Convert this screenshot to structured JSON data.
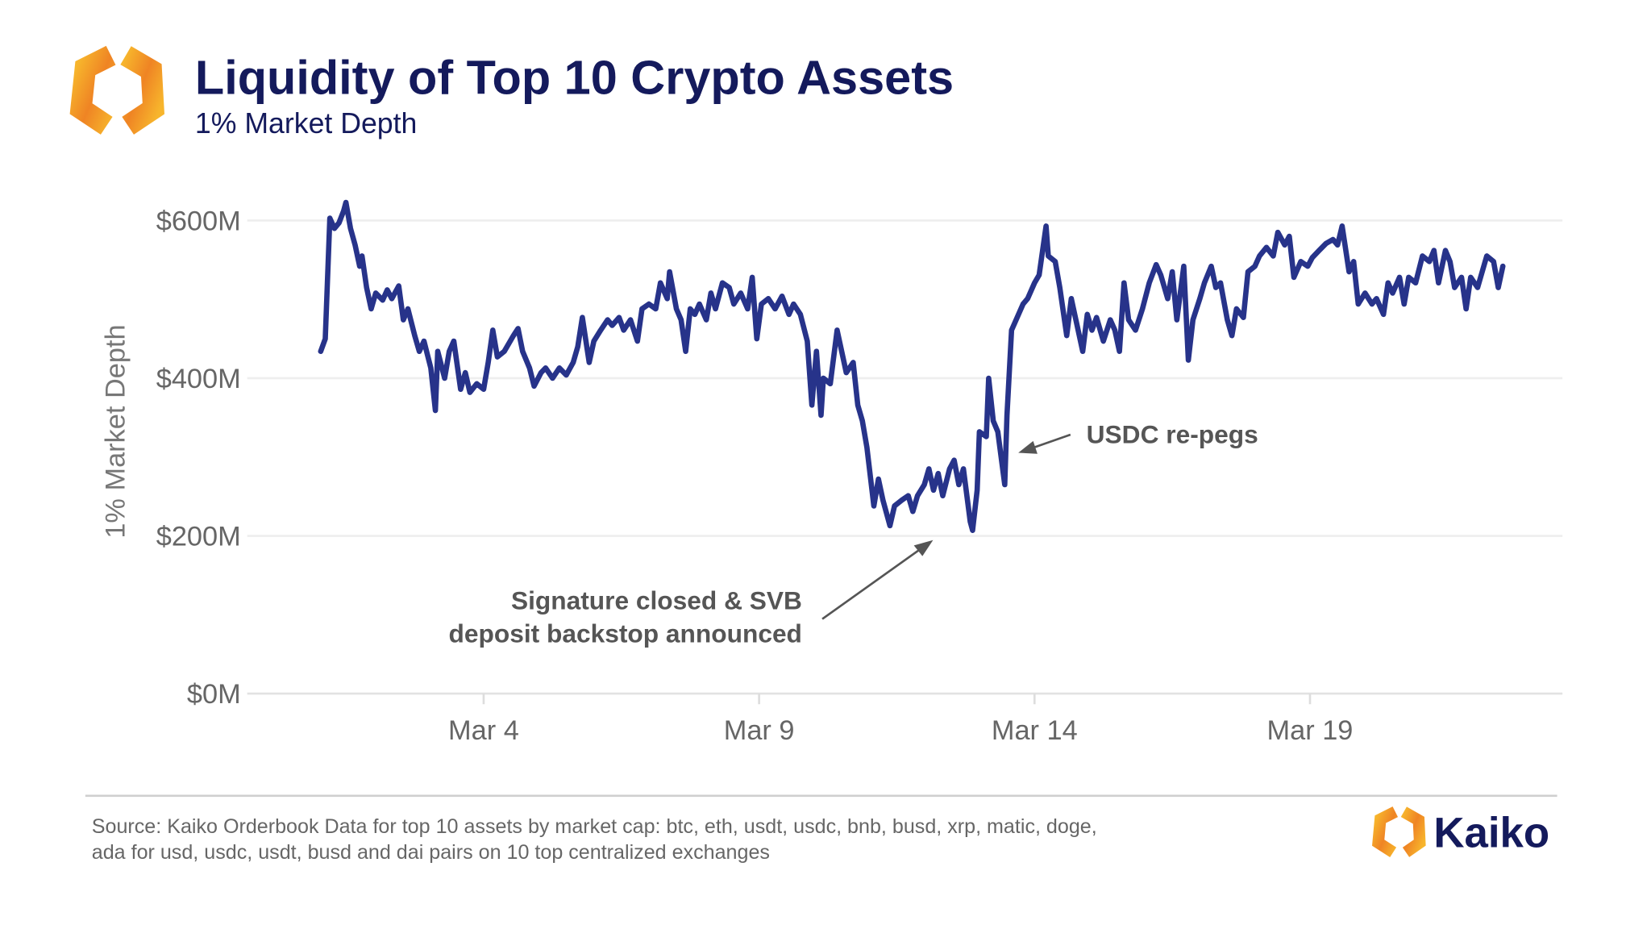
{
  "header": {
    "title": "Liquidity of Top 10 Crypto Assets",
    "subtitle": "1% Market Depth"
  },
  "footer": {
    "source_line1": "Source: Kaiko Orderbook Data for top 10 assets by market cap: btc, eth, usdt, usdc, bnb, busd, xrp, matic, doge,",
    "source_line2": "ada for usd, usdc, usdt, busd and dai pairs on 10 top centralized exchanges",
    "brand": "Kaiko"
  },
  "colors": {
    "title": "#141a5c",
    "line": "#27338a",
    "annotation": "#555555",
    "brand_orange": "#f5a623",
    "brand_orange_dark": "#ee7d22",
    "grid": "#ececec"
  },
  "chart_data": {
    "type": "line",
    "title": "Liquidity of Top 10 Crypto Assets",
    "subtitle": "1% Market Depth",
    "xlabel": "",
    "ylabel": "1% Market Depth",
    "ylim": [
      0,
      650
    ],
    "xlim": [
      "Feb 27 17:00",
      "Mar 23 14:00"
    ],
    "grid": "horizontal",
    "y_ticks": [
      {
        "value": 0,
        "label": "$0M"
      },
      {
        "value": 200,
        "label": "$200M"
      },
      {
        "value": 400,
        "label": "$400M"
      },
      {
        "value": 600,
        "label": "$600M"
      }
    ],
    "x_ticks": [
      {
        "value": "Mar 4 00:00",
        "label": "Mar 4"
      },
      {
        "value": "Mar 9 00:00",
        "label": "Mar 9"
      },
      {
        "value": "Mar 14 00:00",
        "label": "Mar 14"
      },
      {
        "value": "Mar 19 00:00",
        "label": "Mar 19"
      }
    ],
    "annotations": [
      {
        "text_lines": [
          "Signature closed & SVB",
          "deposit backstop announced"
        ],
        "points_to": [
          "Mar 11 14:00",
          250
        ]
      },
      {
        "text_lines": [
          "USDC re-pegs"
        ],
        "points_to": [
          "Mar 13 14:00",
          310
        ]
      }
    ],
    "unit": "USD millions",
    "points": [
      [
        "Mar 1 01:00",
        434
      ],
      [
        "Mar 1 03:00",
        450
      ],
      [
        "Mar 1 05:00",
        603
      ],
      [
        "Mar 1 07:00",
        590
      ],
      [
        "Mar 1 09:00",
        597
      ],
      [
        "Mar 1 11:00",
        612
      ],
      [
        "Mar 1 12:00",
        623
      ],
      [
        "Mar 1 14:00",
        590
      ],
      [
        "Mar 1 16:00",
        569
      ],
      [
        "Mar 1 18:00",
        542
      ],
      [
        "Mar 1 19:00",
        555
      ],
      [
        "Mar 1 21:00",
        515
      ],
      [
        "Mar 1 23:00",
        488
      ],
      [
        "Mar 2 01:00",
        508
      ],
      [
        "Mar 2 04:00",
        499
      ],
      [
        "Mar 2 06:00",
        512
      ],
      [
        "Mar 2 08:00",
        501
      ],
      [
        "Mar 2 11:00",
        517
      ],
      [
        "Mar 2 13:00",
        474
      ],
      [
        "Mar 2 15:00",
        488
      ],
      [
        "Mar 2 18:00",
        454
      ],
      [
        "Mar 2 20:00",
        434
      ],
      [
        "Mar 2 22:00",
        447
      ],
      [
        "Mar 3 01:00",
        413
      ],
      [
        "Mar 3 03:00",
        359
      ],
      [
        "Mar 3 04:00",
        434
      ],
      [
        "Mar 3 07:00",
        400
      ],
      [
        "Mar 3 09:00",
        434
      ],
      [
        "Mar 3 11:00",
        447
      ],
      [
        "Mar 3 14:00",
        386
      ],
      [
        "Mar 3 16:00",
        407
      ],
      [
        "Mar 3 18:00",
        382
      ],
      [
        "Mar 3 21:00",
        393
      ],
      [
        "Mar 4 00:00",
        386
      ],
      [
        "Mar 4 02:00",
        420
      ],
      [
        "Mar 4 04:00",
        461
      ],
      [
        "Mar 4 06:00",
        427
      ],
      [
        "Mar 4 09:00",
        434
      ],
      [
        "Mar 4 13:00",
        454
      ],
      [
        "Mar 4 15:00",
        463
      ],
      [
        "Mar 4 17:00",
        434
      ],
      [
        "Mar 4 20:00",
        413
      ],
      [
        "Mar 4 22:00",
        390
      ],
      [
        "Mar 5 01:00",
        407
      ],
      [
        "Mar 5 03:00",
        413
      ],
      [
        "Mar 5 06:00",
        400
      ],
      [
        "Mar 5 09:00",
        413
      ],
      [
        "Mar 5 12:00",
        404
      ],
      [
        "Mar 5 15:00",
        420
      ],
      [
        "Mar 5 17:00",
        440
      ],
      [
        "Mar 5 19:00",
        477
      ],
      [
        "Mar 5 22:00",
        420
      ],
      [
        "Mar 6 00:00",
        447
      ],
      [
        "Mar 6 03:00",
        461
      ],
      [
        "Mar 6 06:00",
        474
      ],
      [
        "Mar 6 08:00",
        467
      ],
      [
        "Mar 6 11:00",
        477
      ],
      [
        "Mar 6 13:00",
        461
      ],
      [
        "Mar 6 16:00",
        474
      ],
      [
        "Mar 6 19:00",
        447
      ],
      [
        "Mar 6 21:00",
        488
      ],
      [
        "Mar 7 00:00",
        494
      ],
      [
        "Mar 7 03:00",
        488
      ],
      [
        "Mar 7 05:00",
        521
      ],
      [
        "Mar 7 08:00",
        501
      ],
      [
        "Mar 7 09:00",
        535
      ],
      [
        "Mar 7 12:00",
        488
      ],
      [
        "Mar 7 14:00",
        474
      ],
      [
        "Mar 7 16:00",
        434
      ],
      [
        "Mar 7 18:00",
        488
      ],
      [
        "Mar 7 20:00",
        481
      ],
      [
        "Mar 7 22:00",
        494
      ],
      [
        "Mar 8 01:00",
        474
      ],
      [
        "Mar 8 03:00",
        508
      ],
      [
        "Mar 8 05:00",
        488
      ],
      [
        "Mar 8 08:00",
        521
      ],
      [
        "Mar 8 11:00",
        515
      ],
      [
        "Mar 8 13:00",
        494
      ],
      [
        "Mar 8 16:00",
        508
      ],
      [
        "Mar 8 19:00",
        488
      ],
      [
        "Mar 8 21:00",
        528
      ],
      [
        "Mar 8 23:00",
        450
      ],
      [
        "Mar 9 01:00",
        494
      ],
      [
        "Mar 9 04:00",
        501
      ],
      [
        "Mar 9 07:00",
        488
      ],
      [
        "Mar 9 10:00",
        504
      ],
      [
        "Mar 9 13:00",
        481
      ],
      [
        "Mar 9 15:00",
        494
      ],
      [
        "Mar 9 18:00",
        481
      ],
      [
        "Mar 9 21:00",
        447
      ],
      [
        "Mar 9 23:00",
        366
      ],
      [
        "Mar 10 01:00",
        434
      ],
      [
        "Mar 10 03:00",
        353
      ],
      [
        "Mar 10 04:00",
        400
      ],
      [
        "Mar 10 07:00",
        393
      ],
      [
        "Mar 10 10:00",
        461
      ],
      [
        "Mar 10 12:00",
        434
      ],
      [
        "Mar 10 14:00",
        407
      ],
      [
        "Mar 10 17:00",
        420
      ],
      [
        "Mar 10 19:00",
        366
      ],
      [
        "Mar 10 21:00",
        346
      ],
      [
        "Mar 10 23:00",
        312
      ],
      [
        "Mar 11 02:00",
        238
      ],
      [
        "Mar 11 04:00",
        272
      ],
      [
        "Mar 11 06:00",
        245
      ],
      [
        "Mar 11 09:00",
        213
      ],
      [
        "Mar 11 11:00",
        238
      ],
      [
        "Mar 11 14:00",
        245
      ],
      [
        "Mar 11 17:00",
        251
      ],
      [
        "Mar 11 19:00",
        231
      ],
      [
        "Mar 11 21:00",
        251
      ],
      [
        "Mar 12 00:00",
        265
      ],
      [
        "Mar 12 02:00",
        285
      ],
      [
        "Mar 12 04:00",
        258
      ],
      [
        "Mar 12 06:00",
        279
      ],
      [
        "Mar 12 08:00",
        251
      ],
      [
        "Mar 12 11:00",
        285
      ],
      [
        "Mar 12 13:00",
        296
      ],
      [
        "Mar 12 15:00",
        265
      ],
      [
        "Mar 12 17:00",
        285
      ],
      [
        "Mar 12 20:00",
        218
      ],
      [
        "Mar 12 21:00",
        207
      ],
      [
        "Mar 12 23:00",
        258
      ],
      [
        "Mar 13 00:00",
        332
      ],
      [
        "Mar 13 03:00",
        326
      ],
      [
        "Mar 13 04:00",
        400
      ],
      [
        "Mar 13 06:00",
        346
      ],
      [
        "Mar 13 08:00",
        332
      ],
      [
        "Mar 13 11:00",
        265
      ],
      [
        "Mar 13 12:00",
        353
      ],
      [
        "Mar 13 14:00",
        461
      ],
      [
        "Mar 13 16:00",
        474
      ],
      [
        "Mar 13 19:00",
        494
      ],
      [
        "Mar 13 21:00",
        501
      ],
      [
        "Mar 14 00:00",
        521
      ],
      [
        "Mar 14 02:00",
        531
      ],
      [
        "Mar 14 05:00",
        593
      ],
      [
        "Mar 14 06:00",
        555
      ],
      [
        "Mar 14 09:00",
        548
      ],
      [
        "Mar 14 11:00",
        515
      ],
      [
        "Mar 14 14:00",
        454
      ],
      [
        "Mar 14 16:00",
        501
      ],
      [
        "Mar 14 18:00",
        474
      ],
      [
        "Mar 14 21:00",
        434
      ],
      [
        "Mar 14 23:00",
        481
      ],
      [
        "Mar 15 01:00",
        461
      ],
      [
        "Mar 15 03:00",
        477
      ],
      [
        "Mar 15 06:00",
        447
      ],
      [
        "Mar 15 09:00",
        474
      ],
      [
        "Mar 15 11:00",
        461
      ],
      [
        "Mar 15 13:00",
        434
      ],
      [
        "Mar 15 15:00",
        521
      ],
      [
        "Mar 15 17:00",
        474
      ],
      [
        "Mar 15 20:00",
        461
      ],
      [
        "Mar 15 23:00",
        488
      ],
      [
        "Mar 16 02:00",
        521
      ],
      [
        "Mar 16 05:00",
        544
      ],
      [
        "Mar 16 07:00",
        531
      ],
      [
        "Mar 16 10:00",
        501
      ],
      [
        "Mar 16 12:00",
        535
      ],
      [
        "Mar 16 14:00",
        474
      ],
      [
        "Mar 16 17:00",
        542
      ],
      [
        "Mar 16 19:00",
        423
      ],
      [
        "Mar 16 21:00",
        474
      ],
      [
        "Mar 17 00:00",
        501
      ],
      [
        "Mar 17 02:00",
        521
      ],
      [
        "Mar 17 05:00",
        542
      ],
      [
        "Mar 17 07:00",
        515
      ],
      [
        "Mar 17 09:00",
        521
      ],
      [
        "Mar 17 12:00",
        474
      ],
      [
        "Mar 17 14:00",
        454
      ],
      [
        "Mar 17 16:00",
        488
      ],
      [
        "Mar 17 19:00",
        477
      ],
      [
        "Mar 17 21:00",
        535
      ],
      [
        "Mar 18 00:00",
        542
      ],
      [
        "Mar 18 02:00",
        555
      ],
      [
        "Mar 18 05:00",
        566
      ],
      [
        "Mar 18 08:00",
        555
      ],
      [
        "Mar 18 10:00",
        585
      ],
      [
        "Mar 18 13:00",
        569
      ],
      [
        "Mar 18 15:00",
        580
      ],
      [
        "Mar 18 17:00",
        528
      ],
      [
        "Mar 18 20:00",
        548
      ],
      [
        "Mar 18 23:00",
        542
      ],
      [
        "Mar 19 01:00",
        553
      ],
      [
        "Mar 19 04:00",
        562
      ],
      [
        "Mar 19 07:00",
        571
      ],
      [
        "Mar 19 10:00",
        576
      ],
      [
        "Mar 19 12:00",
        569
      ],
      [
        "Mar 19 14:00",
        593
      ],
      [
        "Mar 19 17:00",
        535
      ],
      [
        "Mar 19 19:00",
        548
      ],
      [
        "Mar 19 21:00",
        494
      ],
      [
        "Mar 20 00:00",
        508
      ],
      [
        "Mar 20 03:00",
        494
      ],
      [
        "Mar 20 05:00",
        501
      ],
      [
        "Mar 20 08:00",
        481
      ],
      [
        "Mar 20 10:00",
        521
      ],
      [
        "Mar 20 12:00",
        508
      ],
      [
        "Mar 20 15:00",
        528
      ],
      [
        "Mar 20 17:00",
        494
      ],
      [
        "Mar 20 19:00",
        528
      ],
      [
        "Mar 20 22:00",
        521
      ],
      [
        "Mar 21 01:00",
        555
      ],
      [
        "Mar 21 04:00",
        548
      ],
      [
        "Mar 21 06:00",
        562
      ],
      [
        "Mar 21 08:00",
        521
      ],
      [
        "Mar 21 11:00",
        562
      ],
      [
        "Mar 21 13:00",
        548
      ],
      [
        "Mar 21 15:00",
        515
      ],
      [
        "Mar 21 18:00",
        528
      ],
      [
        "Mar 21 20:00",
        488
      ],
      [
        "Mar 21 22:00",
        528
      ],
      [
        "Mar 22 01:00",
        515
      ],
      [
        "Mar 22 03:00",
        535
      ],
      [
        "Mar 22 05:00",
        555
      ],
      [
        "Mar 22 08:00",
        548
      ],
      [
        "Mar 22 10:00",
        515
      ],
      [
        "Mar 22 12:00",
        542
      ]
    ]
  }
}
